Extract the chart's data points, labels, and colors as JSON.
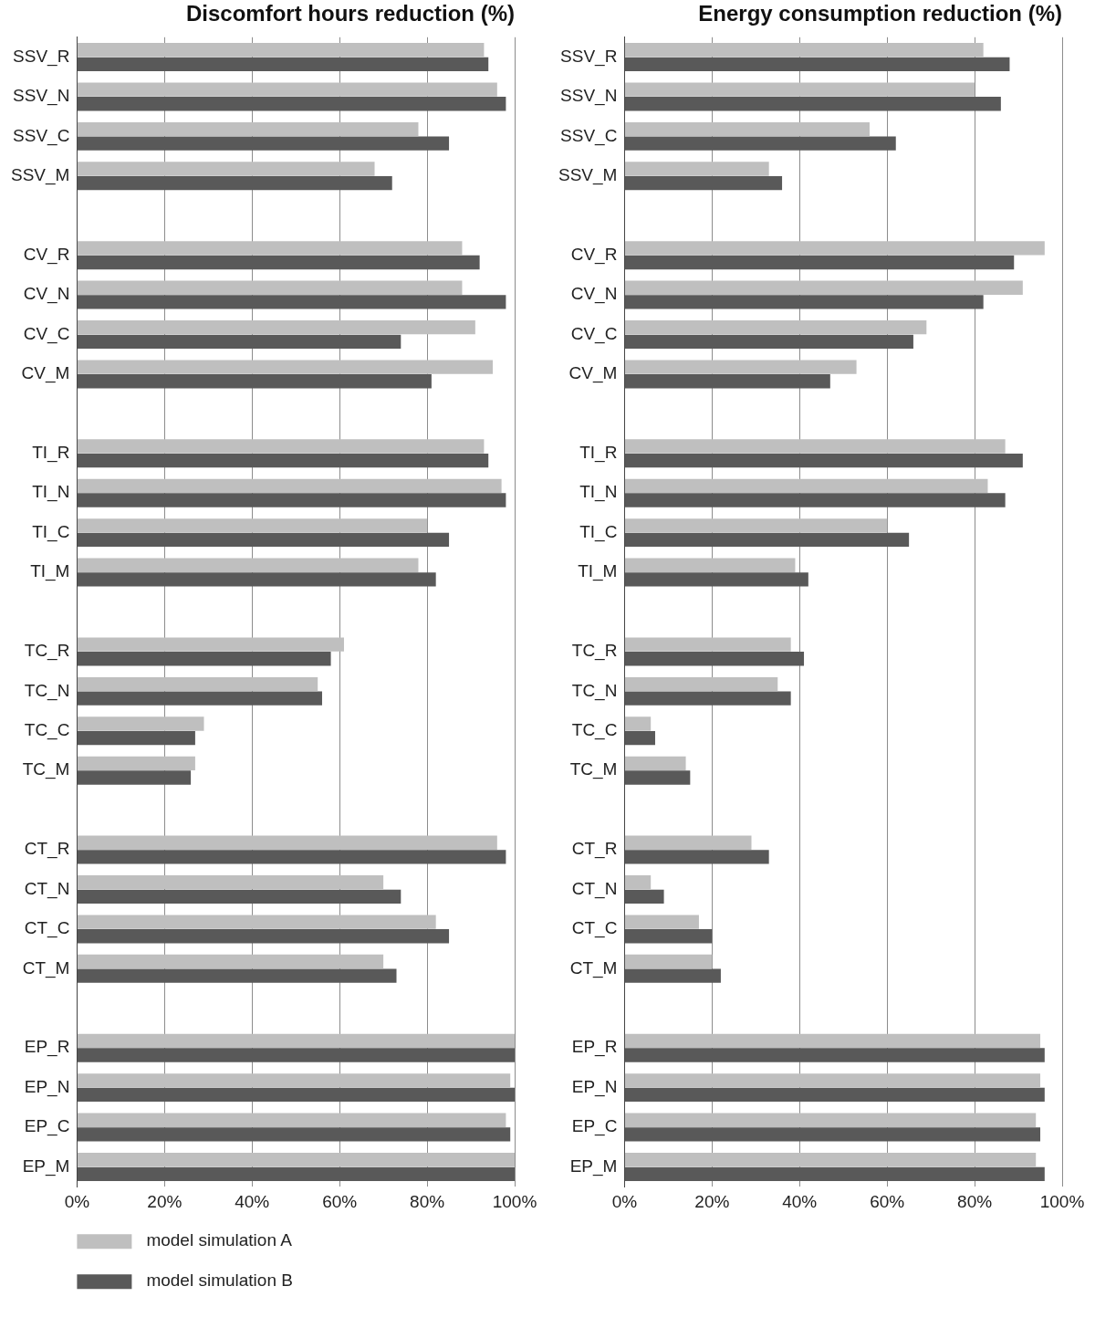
{
  "chart_data": [
    {
      "type": "bar",
      "orientation": "horizontal",
      "title": "Discomfort hours reduction (%)",
      "categories": [
        "SSV_R",
        "SSV_N",
        "SSV_C",
        "SSV_M",
        null,
        "CV_R",
        "CV_N",
        "CV_C",
        "CV_M",
        null,
        "TI_R",
        "TI_N",
        "TI_C",
        "TI_M",
        null,
        "TC_R",
        "TC_N",
        "TC_C",
        "TC_M",
        null,
        "CT_R",
        "CT_N",
        "CT_C",
        "CT_M",
        null,
        "EP_R",
        "EP_N",
        "EP_C",
        "EP_M"
      ],
      "series": [
        {
          "name": "model simulation A",
          "color": "#bfbfbf",
          "values": [
            93,
            96,
            78,
            68,
            null,
            88,
            88,
            91,
            95,
            null,
            93,
            97,
            80,
            78,
            null,
            61,
            55,
            29,
            27,
            null,
            96,
            70,
            82,
            70,
            null,
            100,
            99,
            98,
            100
          ]
        },
        {
          "name": "model simulation B",
          "color": "#595959",
          "values": [
            94,
            98,
            85,
            72,
            null,
            92,
            98,
            74,
            81,
            null,
            94,
            98,
            85,
            82,
            null,
            58,
            56,
            27,
            26,
            null,
            98,
            74,
            85,
            73,
            null,
            100,
            100,
            99,
            100
          ]
        }
      ],
      "xlim": [
        0,
        100
      ],
      "xticks": [
        {
          "value": 0,
          "label": "0%"
        },
        {
          "value": 20,
          "label": "20%"
        },
        {
          "value": 40,
          "label": "40%"
        },
        {
          "value": 60,
          "label": "60%"
        },
        {
          "value": 80,
          "label": "80%"
        },
        {
          "value": 100,
          "label": "100%"
        }
      ],
      "grid": "x",
      "legend": "bottom left"
    },
    {
      "type": "bar",
      "orientation": "horizontal",
      "title": "Energy consumption reduction (%)",
      "categories": [
        "SSV_R",
        "SSV_N",
        "SSV_C",
        "SSV_M",
        null,
        "CV_R",
        "CV_N",
        "CV_C",
        "CV_M",
        null,
        "TI_R",
        "TI_N",
        "TI_C",
        "TI_M",
        null,
        "TC_R",
        "TC_N",
        "TC_C",
        "TC_M",
        null,
        "CT_R",
        "CT_N",
        "CT_C",
        "CT_M",
        null,
        "EP_R",
        "EP_N",
        "EP_C",
        "EP_M"
      ],
      "series": [
        {
          "color": "#bfbfbf",
          "values": [
            82,
            80,
            56,
            33,
            null,
            96,
            91,
            69,
            53,
            null,
            87,
            83,
            60,
            39,
            null,
            38,
            35,
            6,
            14,
            null,
            29,
            6,
            17,
            20,
            null,
            95,
            95,
            94,
            94
          ]
        },
        {
          "color": "#595959",
          "values": [
            88,
            86,
            62,
            36,
            null,
            89,
            82,
            66,
            47,
            null,
            91,
            87,
            65,
            42,
            null,
            41,
            38,
            7,
            15,
            null,
            33,
            9,
            20,
            22,
            null,
            96,
            96,
            95,
            96
          ]
        }
      ],
      "xlim": [
        0,
        100
      ],
      "xticks": [
        {
          "value": 0,
          "label": "0%"
        },
        {
          "value": 20,
          "label": "20%"
        },
        {
          "value": 40,
          "label": "40%"
        },
        {
          "value": 60,
          "label": "60%"
        },
        {
          "value": 80,
          "label": "80%"
        },
        {
          "value": 100,
          "label": "100%"
        }
      ],
      "grid": "x"
    }
  ]
}
